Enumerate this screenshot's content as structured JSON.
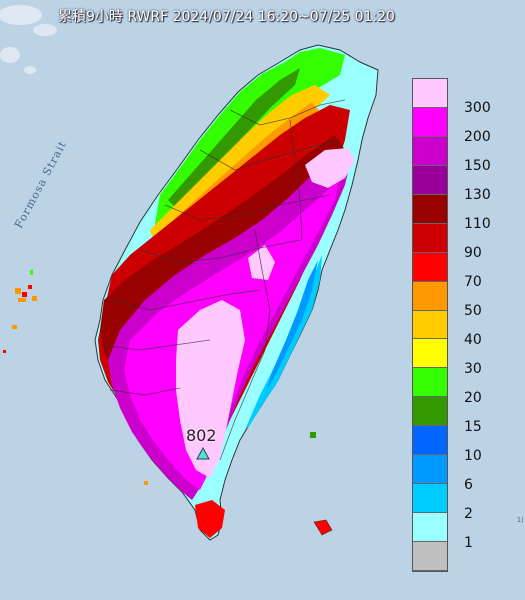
{
  "title": "累積9小時 RWRF 2024/07/24 16:20~07/25 01:20",
  "strait_label": "Formosa Strait",
  "max_value_label": "802",
  "edge_fragment": "1(",
  "legend": [
    {
      "label": "300",
      "color": "#ffc8ff"
    },
    {
      "label": "200",
      "color": "#ff00ff"
    },
    {
      "label": "150",
      "color": "#cc00cc"
    },
    {
      "label": "130",
      "color": "#990099"
    },
    {
      "label": "110",
      "color": "#990000"
    },
    {
      "label": "90",
      "color": "#cc0000"
    },
    {
      "label": "70",
      "color": "#ff0000"
    },
    {
      "label": "50",
      "color": "#ff9900"
    },
    {
      "label": "40",
      "color": "#ffcc00"
    },
    {
      "label": "30",
      "color": "#ffff00"
    },
    {
      "label": "20",
      "color": "#33ff00"
    },
    {
      "label": "15",
      "color": "#339900"
    },
    {
      "label": "10",
      "color": "#0066ff"
    },
    {
      "label": "6",
      "color": "#0099ff"
    },
    {
      "label": "2",
      "color": "#00ccff"
    },
    {
      "label": "1",
      "color": "#99ffff"
    },
    {
      "label": "",
      "color": "#c0c0c0"
    }
  ],
  "colors": {
    "sea": "#bcd3e6",
    "land_base": "#cc00cc",
    "max_marker": "#55e0d0"
  }
}
